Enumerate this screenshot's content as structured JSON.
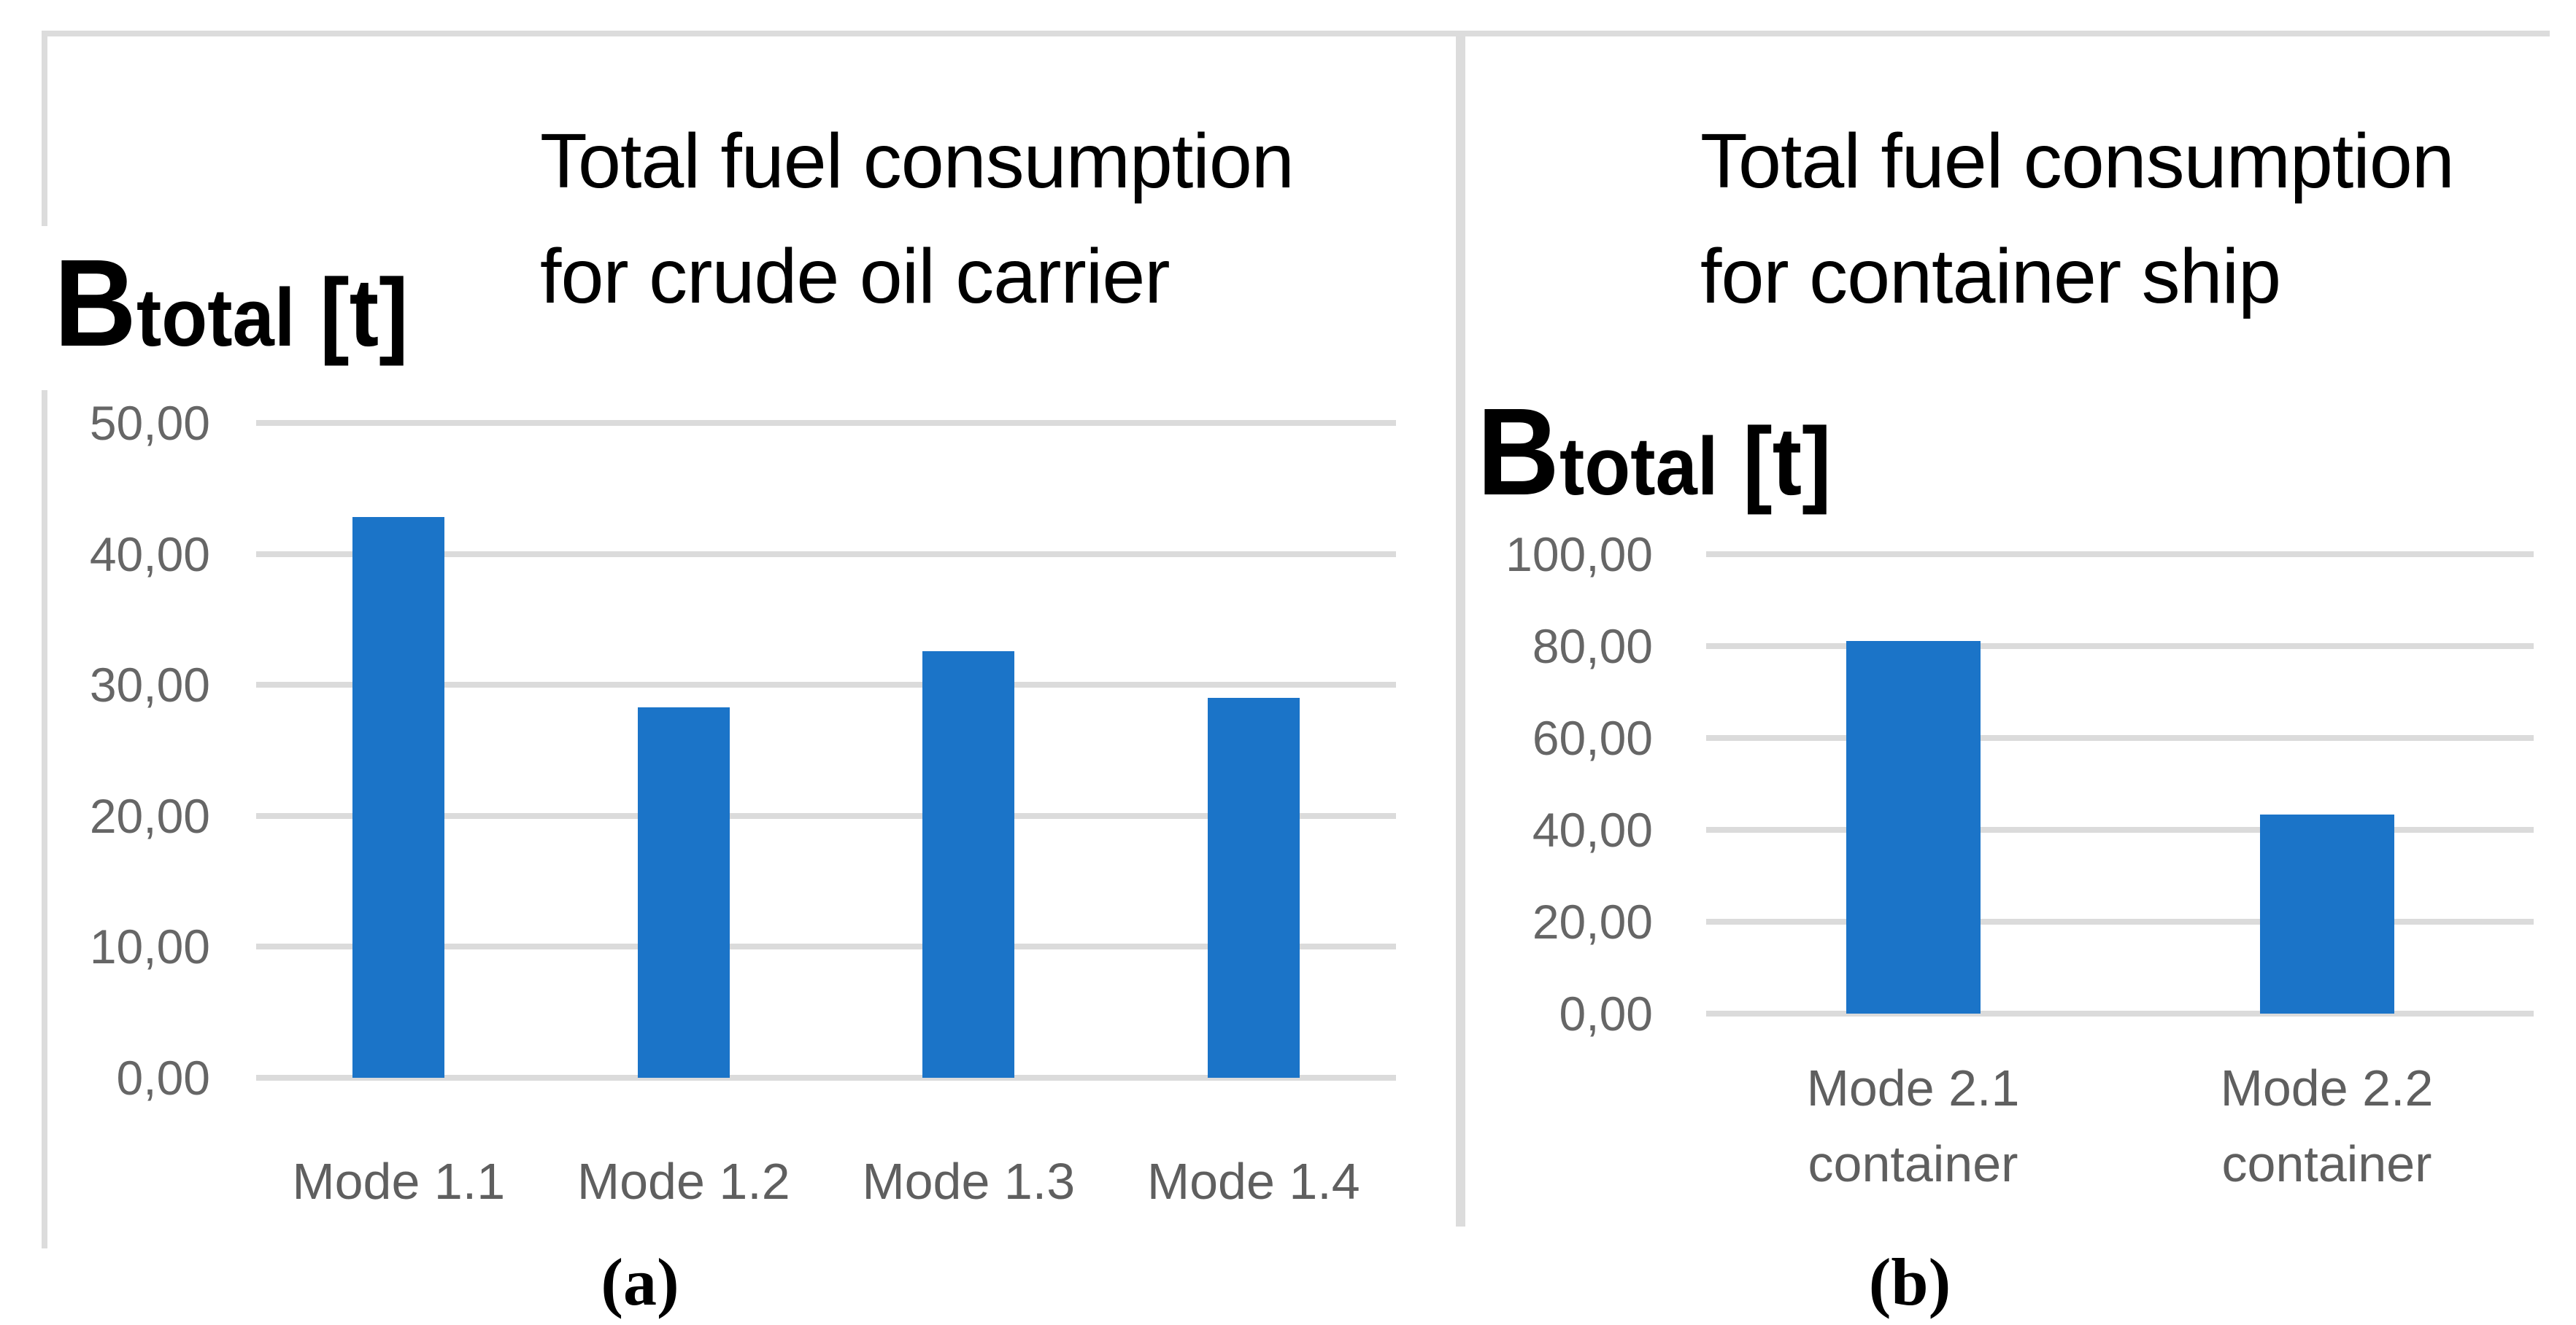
{
  "figure": {
    "panels": [
      {
        "id": "a",
        "caption": "(a)"
      },
      {
        "id": "b",
        "caption": "(b)"
      }
    ]
  },
  "colors": {
    "bar": "#1b74c8",
    "gridline": "#dbdbdb",
    "tick_text": "#666666",
    "category_text": "#5f5f5f",
    "title_text": "#000000",
    "frame": "#dcdcdc"
  },
  "chart_data": [
    {
      "type": "bar",
      "panel": "a",
      "title": "Total fuel consumption for crude oil carrier",
      "title_lines": [
        "Total fuel consumption",
        "for crude oil carrier"
      ],
      "ylabel": "Btotal [t]",
      "ylabel_parts": {
        "symbol": "B",
        "subscript": "total",
        "unit": "[t]"
      },
      "categories": [
        "Mode 1.1",
        "Mode 1.2",
        "Mode 1.3",
        "Mode 1.4"
      ],
      "values": [
        42.8,
        28.3,
        32.6,
        29.0
      ],
      "ylim": [
        0,
        50
      ],
      "ytick_labels": [
        "50,00",
        "40,00",
        "30,00",
        "20,00",
        "10,00",
        "0,00"
      ],
      "decimal_separator": ",",
      "grid": true,
      "legend": "none",
      "bar_color": "#1b74c8"
    },
    {
      "type": "bar",
      "panel": "b",
      "title": "Total fuel consumption for container ship",
      "title_lines": [
        "Total fuel consumption",
        "for container ship"
      ],
      "ylabel": "Btotal [t]",
      "ylabel_parts": {
        "symbol": "B",
        "subscript": "total",
        "unit": "[t]"
      },
      "categories": [
        "Mode 2.1\ncontainer",
        "Mode 2.2\ncontainer"
      ],
      "values": [
        81.1,
        43.4
      ],
      "ylim": [
        0,
        100
      ],
      "ytick_labels": [
        "100,00",
        "80,00",
        "60,00",
        "40,00",
        "20,00",
        "0,00"
      ],
      "decimal_separator": ",",
      "grid": true,
      "legend": "none",
      "bar_color": "#1b74c8"
    }
  ]
}
